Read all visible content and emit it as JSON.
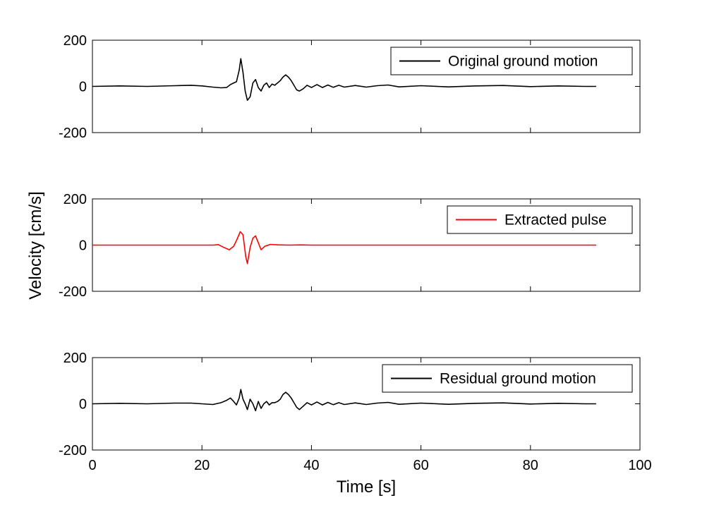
{
  "chart_data": [
    {
      "type": "line",
      "xlim": [
        0,
        100
      ],
      "ylim": [
        -200,
        200
      ],
      "yticks": [
        -200,
        0,
        200
      ],
      "xticks": [
        0,
        20,
        40,
        60,
        80,
        100
      ],
      "show_x_tick_labels": false,
      "grid": false,
      "legend_position": "top-right",
      "series": [
        {
          "name": "Original ground motion",
          "color": "#000000",
          "x": [
            0,
            5,
            10,
            15,
            18,
            20,
            22,
            23.5,
            24.5,
            25.2,
            25.8,
            26.3,
            26.8,
            27.1,
            27.5,
            27.9,
            28.3,
            28.8,
            29.3,
            29.8,
            30.3,
            30.8,
            31.3,
            31.8,
            32.3,
            32.8,
            33.3,
            33.8,
            34.3,
            34.8,
            35.3,
            35.8,
            36.3,
            36.8,
            37.3,
            37.8,
            38.5,
            39.2,
            40,
            41,
            42,
            43,
            44,
            45,
            46,
            48,
            50,
            52,
            54,
            56,
            60,
            65,
            70,
            75,
            80,
            85,
            90,
            92
          ],
          "y": [
            0,
            2,
            0,
            3,
            5,
            2,
            -3,
            -6,
            -5,
            8,
            15,
            20,
            70,
            120,
            60,
            -20,
            -60,
            -45,
            15,
            30,
            -5,
            -20,
            5,
            15,
            -5,
            10,
            5,
            15,
            25,
            40,
            50,
            40,
            25,
            5,
            -15,
            -20,
            -10,
            5,
            -5,
            8,
            -5,
            6,
            -4,
            5,
            -3,
            4,
            -3,
            3,
            6,
            -2,
            3,
            -2,
            2,
            4,
            -1,
            2,
            0,
            0
          ]
        }
      ]
    },
    {
      "type": "line",
      "xlim": [
        0,
        100
      ],
      "ylim": [
        -200,
        200
      ],
      "yticks": [
        -200,
        0,
        200
      ],
      "xticks": [
        0,
        20,
        40,
        60,
        80,
        100
      ],
      "show_x_tick_labels": false,
      "grid": false,
      "legend_position": "top-right",
      "series": [
        {
          "name": "Extracted pulse",
          "color": "#ff0000",
          "x": [
            0,
            20,
            22,
            23,
            24,
            25,
            25.8,
            26.4,
            27,
            27.5,
            28,
            28.3,
            28.8,
            29.3,
            29.8,
            30.3,
            30.8,
            31.5,
            32.5,
            34,
            36,
            38,
            40,
            50,
            60,
            70,
            80,
            92
          ],
          "y": [
            0,
            0,
            0,
            2,
            -10,
            -20,
            -5,
            25,
            58,
            45,
            -50,
            -80,
            -10,
            30,
            40,
            10,
            -20,
            -5,
            3,
            1,
            0,
            1,
            0,
            0,
            0,
            0,
            0,
            0
          ]
        }
      ]
    },
    {
      "type": "line",
      "xlim": [
        0,
        100
      ],
      "ylim": [
        -200,
        200
      ],
      "yticks": [
        -200,
        0,
        200
      ],
      "xticks": [
        0,
        20,
        40,
        60,
        80,
        100
      ],
      "xlabel": "Time [s]",
      "show_x_tick_labels": true,
      "grid": false,
      "legend_position": "top-right",
      "series": [
        {
          "name": "Residual ground motion",
          "color": "#000000",
          "x": [
            0,
            5,
            10,
            15,
            18,
            20,
            22,
            23.5,
            24.5,
            25.2,
            25.8,
            26.3,
            26.8,
            27.1,
            27.5,
            27.9,
            28.3,
            28.8,
            29.3,
            29.8,
            30.3,
            30.8,
            31.3,
            31.8,
            32.3,
            32.8,
            33.3,
            33.8,
            34.3,
            34.8,
            35.3,
            35.8,
            36.3,
            36.8,
            37.3,
            37.8,
            38.5,
            39.2,
            40,
            41,
            42,
            43,
            44,
            45,
            46,
            48,
            50,
            52,
            54,
            56,
            60,
            65,
            70,
            75,
            80,
            85,
            90,
            92
          ],
          "y": [
            0,
            2,
            0,
            3,
            3,
            0,
            -3,
            5,
            15,
            25,
            10,
            -5,
            25,
            62,
            20,
            0,
            -25,
            20,
            0,
            -30,
            10,
            -20,
            0,
            10,
            -5,
            5,
            5,
            10,
            20,
            40,
            50,
            40,
            25,
            5,
            -15,
            -25,
            -10,
            5,
            -5,
            8,
            -5,
            6,
            -4,
            5,
            -3,
            4,
            -3,
            3,
            6,
            -2,
            3,
            -2,
            2,
            4,
            -1,
            2,
            0,
            0
          ]
        }
      ]
    }
  ],
  "shared_ylabel": "Velocity [cm/s]"
}
